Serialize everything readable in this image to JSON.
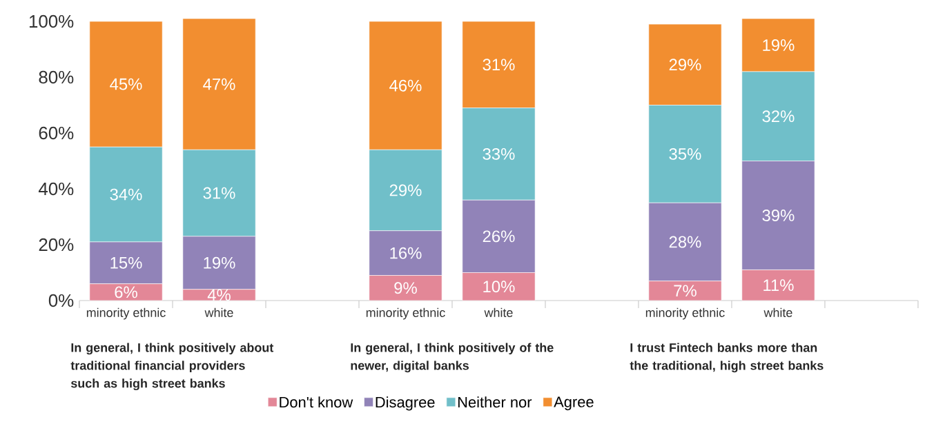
{
  "chart_data": {
    "type": "bar",
    "stacked": true,
    "legend": "bottom",
    "categories": [
      "minority ethnic",
      "white",
      null,
      "minority ethnic",
      "white",
      null,
      "minority ethnic",
      "white",
      null
    ],
    "series": [
      {
        "name": "Don't know",
        "color": "#e38797",
        "values": [
          6,
          4,
          null,
          9,
          10,
          null,
          7,
          11,
          null
        ],
        "value_labels": [
          "6%",
          "4%",
          null,
          "9%",
          "10%",
          null,
          "7%",
          "11%",
          null
        ]
      },
      {
        "name": "Disagree",
        "color": "#9183b8",
        "values": [
          15,
          19,
          null,
          16,
          26,
          null,
          28,
          39,
          null
        ],
        "value_labels": [
          "15%",
          "19%",
          null,
          "16%",
          "26%",
          null,
          "28%",
          "39%",
          null
        ]
      },
      {
        "name": "Neither nor",
        "color": "#70bfc9",
        "values": [
          34,
          31,
          null,
          29,
          33,
          null,
          35,
          32,
          null
        ],
        "value_labels": [
          "34%",
          "31%",
          null,
          "29%",
          "33%",
          null,
          "35%",
          "32%",
          null
        ]
      },
      {
        "name": "Agree",
        "color": "#f28e30",
        "values": [
          45,
          47,
          null,
          46,
          31,
          null,
          29,
          19,
          null
        ],
        "value_labels": [
          "45%",
          "47%",
          null,
          "46%",
          "31%",
          null,
          "29%",
          "19%",
          null
        ]
      }
    ],
    "ylim": [
      0,
      101
    ],
    "yticks": [
      {
        "value": 0,
        "label": "0%"
      },
      {
        "value": 20,
        "label": "20%"
      },
      {
        "value": 40,
        "label": "40%"
      },
      {
        "value": 60,
        "label": "60%"
      },
      {
        "value": 80,
        "label": "80%"
      },
      {
        "value": 100,
        "label": "100%"
      }
    ],
    "annotations": [
      "In general, I think positively about traditional financial providers such as high street banks",
      "In general, I think positively of the newer, digital banks",
      "I trust Fintech banks more than the traditional, high street banks"
    ]
  }
}
